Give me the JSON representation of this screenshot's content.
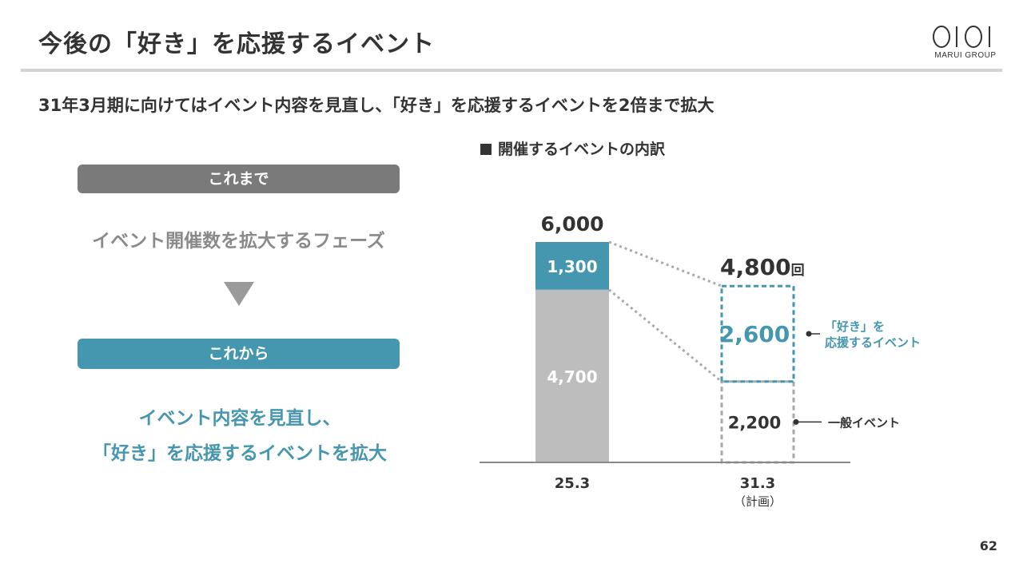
{
  "header": {
    "title": "今後の「好き」を応援するイベント",
    "logo_text": "MARUI GROUP"
  },
  "subtitle": "31年3月期に向けてはイベント内容を見直し、「好き」を応援するイベントを2倍まで拡大",
  "left_panel": {
    "before_label": "これまで",
    "before_text": "イベント開催数を拡大するフェーズ",
    "after_label": "これから",
    "after_text_line1": "イベント内容を見直し、",
    "after_text_line2": "「好き」を応援するイベントを拡大"
  },
  "chart_heading": "開催するイベントの内訳",
  "chart_data": {
    "type": "bar",
    "stacked": true,
    "categories": [
      "25.3",
      "31.3"
    ],
    "category_sublabels": [
      "",
      "（計画）"
    ],
    "series": [
      {
        "name": "一般イベント",
        "values": [
          4700,
          2200
        ]
      },
      {
        "name": "「好き」を応援するイベント",
        "values": [
          1300,
          2600
        ]
      }
    ],
    "totals": [
      "6,000",
      "4,800"
    ],
    "total_unit": "回",
    "value_labels": [
      [
        "4,700",
        "1,300"
      ],
      [
        "2,200",
        "2,600"
      ]
    ],
    "legend_callouts": {
      "oshi_line1": "「好き」を",
      "oshi_line2": "応援するイベント",
      "general": "一般イベント"
    },
    "ylim": [
      0,
      6000
    ],
    "grid": false,
    "colors": {
      "general_solid": "#bdbdbd",
      "oshi_solid": "#4596af",
      "general_dashed": "#a9a9a9",
      "oshi_dashed": "#4596af",
      "connector": "#a9a9a9",
      "axis": "#888888"
    }
  },
  "page_number": "62"
}
